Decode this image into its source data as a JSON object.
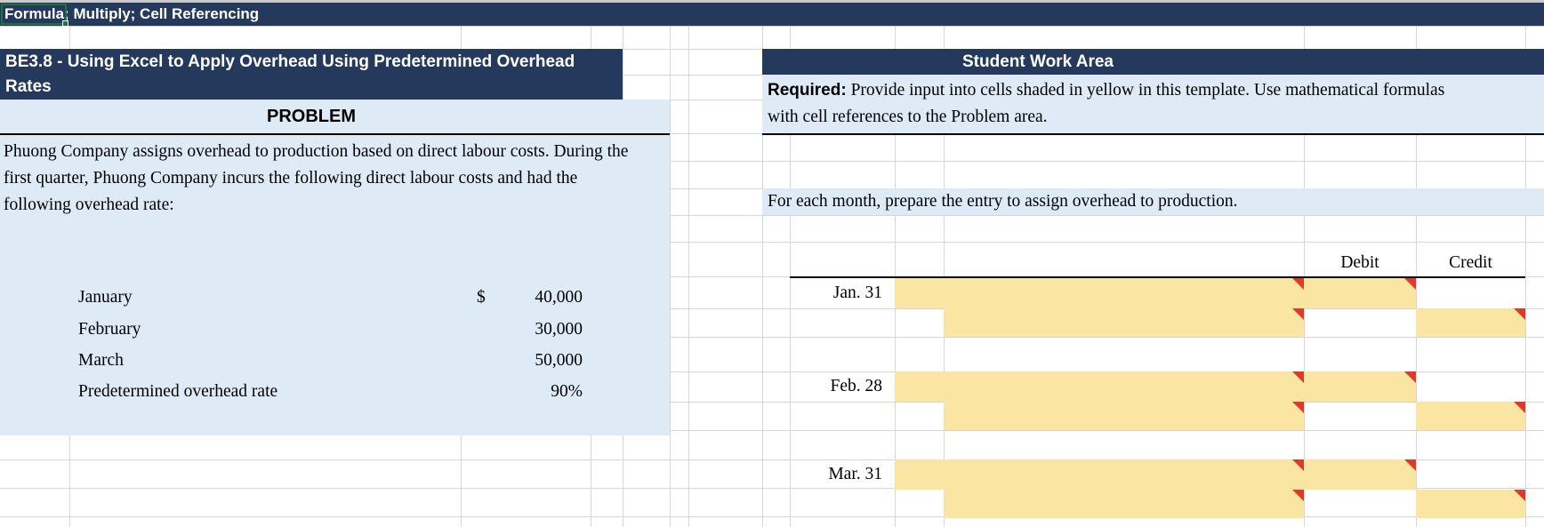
{
  "title_bar": {
    "text": "Formula; Multiply; Cell Referencing"
  },
  "problem": {
    "header": "BE3.8 - Using Excel to Apply Overhead Using Predetermined Overhead Rates",
    "section_label": "PROBLEM",
    "description": "Phuong Company assigns overhead to production based on direct labour costs. During the first quarter, Phuong Company incurs the following direct labour costs and had the following overhead rate:",
    "rows": [
      {
        "label": "January",
        "currency": "$",
        "value": "40,000"
      },
      {
        "label": "February",
        "currency": "",
        "value": "30,000"
      },
      {
        "label": "March",
        "currency": "",
        "value": "50,000"
      },
      {
        "label": "Predetermined overhead rate",
        "currency": "",
        "value": "90%"
      }
    ]
  },
  "work_area": {
    "header": "Student Work Area",
    "required_bold": "Required:",
    "required_text": " Provide input into cells shaded in yellow in this template. Use mathematical formulas with cell references to the Problem area.",
    "instruction": "For each month, prepare the entry to assign overhead to production.",
    "journal": {
      "debit_header": "Debit",
      "credit_header": "Credit",
      "entries": [
        {
          "date": "Jan. 31"
        },
        {
          "date": "Feb. 28"
        },
        {
          "date": "Mar. 31"
        }
      ]
    }
  },
  "colors": {
    "navy": "#24395B",
    "panelblue": "#DFEAF7",
    "yellow": "#FAE5A3",
    "flagred": "#E0392B",
    "grid": "#D6D6D6",
    "green": "#1E7145"
  }
}
